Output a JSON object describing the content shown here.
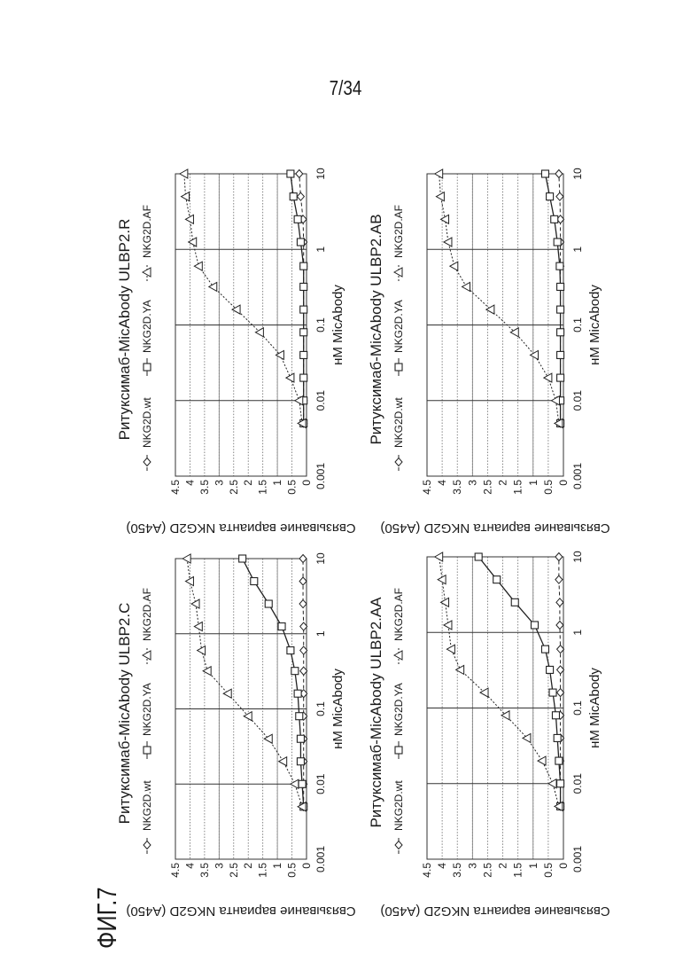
{
  "page_number": "7/34",
  "figure_label": "ФИГ.7",
  "chart_data": [
    {
      "type": "line",
      "title": "Ритуксимаб-MicAbody ULBP2.C",
      "xlabel": "нМ MicAbody",
      "ylabel": "Связывание варианта NKG2D (A450)",
      "x_scale": "log",
      "xlim": [
        0.001,
        10
      ],
      "ylim": [
        0,
        4.5
      ],
      "xticks": [
        "0.001",
        "0.01",
        "0.1",
        "1",
        "10"
      ],
      "yticks": [
        "0",
        "0.5",
        "1",
        "1.5",
        "2",
        "2.5",
        "3",
        "3.5",
        "4",
        "4.5"
      ],
      "legend_position": "top",
      "x": [
        0.005,
        0.01,
        0.02,
        0.04,
        0.08,
        0.16,
        0.32,
        0.6,
        1.25,
        2.5,
        5,
        10
      ],
      "series": [
        {
          "name": "NKG2D.wt",
          "marker": "diamond",
          "dash": "dashed",
          "values": [
            0.1,
            0.1,
            0.1,
            0.1,
            0.1,
            0.1,
            0.1,
            0.1,
            0.1,
            0.12,
            0.12,
            0.12
          ]
        },
        {
          "name": "NKG2D.YA",
          "marker": "square",
          "dash": "solid",
          "values": [
            0.1,
            0.15,
            0.2,
            0.2,
            0.25,
            0.3,
            0.4,
            0.55,
            0.85,
            1.3,
            1.8,
            2.2
          ]
        },
        {
          "name": "NKG2D.AF",
          "marker": "triangle",
          "dash": "dotted",
          "values": [
            0.15,
            0.4,
            0.8,
            1.3,
            2.0,
            2.7,
            3.4,
            3.6,
            3.7,
            3.8,
            4.0,
            4.1
          ]
        }
      ]
    },
    {
      "type": "line",
      "title": "Ритуксимаб-MicAbody ULBP2.R",
      "xlabel": "нМ MicAbody",
      "ylabel": "Связывание варианта NKG2D (A450)",
      "x_scale": "log",
      "xlim": [
        0.001,
        10
      ],
      "ylim": [
        0,
        4.5
      ],
      "xticks": [
        "0.001",
        "0.01",
        "0.1",
        "1",
        "10"
      ],
      "yticks": [
        "0",
        "0.5",
        "1",
        "1.5",
        "2",
        "2.5",
        "3",
        "3.5",
        "4",
        "4.5"
      ],
      "legend_position": "top",
      "x": [
        0.005,
        0.01,
        0.02,
        0.04,
        0.08,
        0.16,
        0.32,
        0.6,
        1.25,
        2.5,
        5,
        10
      ],
      "series": [
        {
          "name": "NKG2D.wt",
          "marker": "diamond",
          "dash": "dashed",
          "values": [
            0.1,
            0.1,
            0.1,
            0.1,
            0.1,
            0.1,
            0.1,
            0.1,
            0.1,
            0.12,
            0.2,
            0.25
          ]
        },
        {
          "name": "NKG2D.YA",
          "marker": "square",
          "dash": "solid",
          "values": [
            0.1,
            0.1,
            0.1,
            0.1,
            0.1,
            0.1,
            0.1,
            0.1,
            0.2,
            0.3,
            0.45,
            0.55
          ]
        },
        {
          "name": "NKG2D.AF",
          "marker": "triangle",
          "dash": "dotted",
          "values": [
            0.15,
            0.25,
            0.55,
            0.9,
            1.6,
            2.4,
            3.2,
            3.7,
            3.9,
            4.0,
            4.15,
            4.2
          ]
        }
      ]
    },
    {
      "type": "line",
      "title": "Ритуксимаб-MicAbody ULBP2.AA",
      "xlabel": "нМ MicAbody",
      "ylabel": "Связывание варианта NKG2D (A450)",
      "x_scale": "log",
      "xlim": [
        0.001,
        10
      ],
      "ylim": [
        0,
        4.5
      ],
      "xticks": [
        "0.001",
        "0.01",
        "0.1",
        "1",
        "10"
      ],
      "yticks": [
        "0",
        "0.5",
        "1",
        "1.5",
        "2",
        "2.5",
        "3",
        "3.5",
        "4",
        "4.5"
      ],
      "legend_position": "top",
      "x": [
        0.005,
        0.01,
        0.02,
        0.04,
        0.08,
        0.16,
        0.32,
        0.6,
        1.25,
        2.5,
        5,
        10
      ],
      "series": [
        {
          "name": "NKG2D.wt",
          "marker": "diamond",
          "dash": "dashed",
          "values": [
            0.1,
            0.1,
            0.1,
            0.1,
            0.1,
            0.1,
            0.1,
            0.1,
            0.12,
            0.12,
            0.15,
            0.15
          ]
        },
        {
          "name": "NKG2D.YA",
          "marker": "square",
          "dash": "solid",
          "values": [
            0.1,
            0.1,
            0.15,
            0.2,
            0.25,
            0.35,
            0.45,
            0.6,
            0.95,
            1.6,
            2.2,
            2.8
          ]
        },
        {
          "name": "NKG2D.AF",
          "marker": "triangle",
          "dash": "dotted",
          "values": [
            0.15,
            0.35,
            0.7,
            1.2,
            1.9,
            2.6,
            3.4,
            3.7,
            3.8,
            3.9,
            4.0,
            4.1
          ]
        }
      ]
    },
    {
      "type": "line",
      "title": "Ритуксимаб-MicAbody ULBP2.AB",
      "xlabel": "нМ MicAbody",
      "ylabel": "Связывание варианта NKG2D (A450)",
      "x_scale": "log",
      "xlim": [
        0.001,
        10
      ],
      "ylim": [
        0,
        4.5
      ],
      "xticks": [
        "0.001",
        "0.01",
        "0.1",
        "1",
        "10"
      ],
      "yticks": [
        "0",
        "0.5",
        "1",
        "1.5",
        "2",
        "2.5",
        "3",
        "3.5",
        "4",
        "4.5"
      ],
      "legend_position": "top",
      "x": [
        0.005,
        0.01,
        0.02,
        0.04,
        0.08,
        0.16,
        0.32,
        0.6,
        1.25,
        2.5,
        5,
        10
      ],
      "series": [
        {
          "name": "NKG2D.wt",
          "marker": "diamond",
          "dash": "dashed",
          "values": [
            0.1,
            0.1,
            0.1,
            0.1,
            0.1,
            0.1,
            0.1,
            0.1,
            0.1,
            0.1,
            0.12,
            0.15
          ]
        },
        {
          "name": "NKG2D.YA",
          "marker": "square",
          "dash": "solid",
          "values": [
            0.1,
            0.1,
            0.1,
            0.1,
            0.1,
            0.1,
            0.1,
            0.12,
            0.2,
            0.3,
            0.45,
            0.6
          ]
        },
        {
          "name": "NKG2D.AF",
          "marker": "triangle",
          "dash": "dotted",
          "values": [
            0.15,
            0.25,
            0.5,
            0.95,
            1.6,
            2.4,
            3.2,
            3.6,
            3.8,
            3.9,
            4.05,
            4.1
          ]
        }
      ]
    }
  ]
}
